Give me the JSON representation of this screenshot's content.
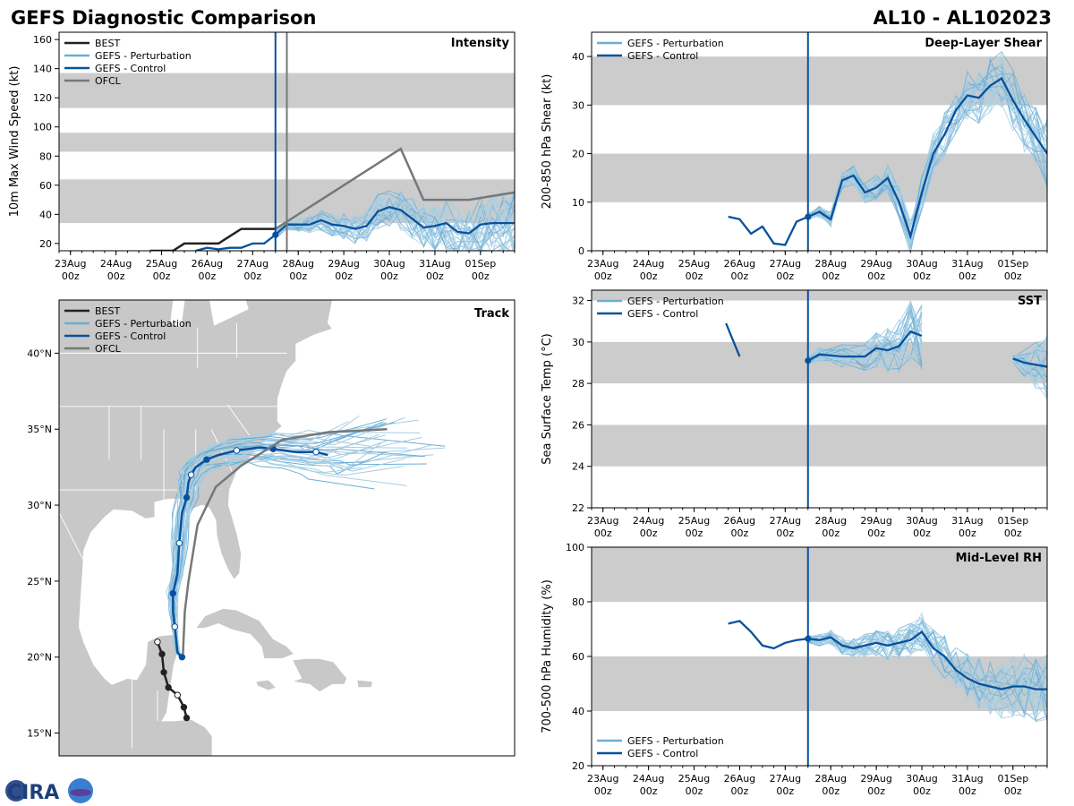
{
  "header": {
    "title": "GEFS Diagnostic Comparison",
    "storm": "AL10 - AL102023"
  },
  "logo": {
    "text": "CIRA"
  },
  "colors": {
    "best": "#222222",
    "pert": "#6baed6",
    "ctrl": "#08519c",
    "ofcl": "#777777",
    "band": "#cccccc",
    "land": "#c8c8c8"
  },
  "time_ticks": [
    "23Aug",
    "24Aug",
    "25Aug",
    "26Aug",
    "27Aug",
    "28Aug",
    "29Aug",
    "30Aug",
    "31Aug",
    "01Sep"
  ],
  "time_tick_sub": "00z",
  "init_time": 4.5,
  "chart_data": [
    {
      "id": "intensity",
      "type": "line",
      "title": "Intensity",
      "ylabel": "10m Max Wind Speed (kt)",
      "xlim": [
        -0.25,
        9.75
      ],
      "ylim": [
        15,
        165
      ],
      "yticks": [
        20,
        40,
        60,
        80,
        100,
        120,
        140,
        160
      ],
      "bands": [
        [
          34,
          64
        ],
        [
          83,
          96
        ],
        [
          113,
          137
        ]
      ],
      "legend": [
        "BEST",
        "GEFS - Perturbation",
        "GEFS - Control",
        "OFCL"
      ],
      "ofcl_vline": 4.75,
      "series": [
        {
          "name": "BEST",
          "x": [
            1.75,
            2.25,
            2.5,
            2.75,
            3.0,
            3.25,
            3.5,
            3.75,
            4.0,
            4.25,
            4.5
          ],
          "y": [
            15,
            15,
            20,
            20,
            20,
            20,
            25,
            30,
            30,
            30,
            30
          ]
        },
        {
          "name": "GEFS - Control",
          "x": [
            2.75,
            3.0,
            3.25,
            3.5,
            3.75,
            4.0,
            4.25,
            4.5,
            4.75,
            5.0,
            5.25,
            5.5,
            5.75,
            6.0,
            6.25,
            6.5,
            6.75,
            7.0,
            7.25,
            7.5,
            7.75,
            8.0,
            8.25,
            8.5,
            8.75,
            9.0,
            9.25,
            9.5,
            9.75
          ],
          "y": [
            15,
            17,
            16,
            17,
            17,
            20,
            20,
            26,
            33,
            33,
            33,
            36,
            33,
            32,
            30,
            32,
            42,
            45,
            43,
            37,
            31,
            32,
            34,
            28,
            27,
            33,
            34,
            34,
            34
          ]
        },
        {
          "name": "OFCL",
          "x": [
            4.5,
            4.75,
            5.25,
            6.25,
            7.25,
            7.75,
            8.75,
            9.75
          ],
          "y": [
            30,
            35,
            45,
            65,
            85,
            50,
            50,
            55
          ]
        }
      ]
    },
    {
      "id": "shear",
      "type": "line",
      "title": "Deep-Layer Shear",
      "ylabel": "200-850 hPa Shear (kt)",
      "xlim": [
        -0.25,
        9.75
      ],
      "ylim": [
        0,
        45
      ],
      "yticks": [
        0,
        10,
        20,
        30,
        40
      ],
      "bands": [
        [
          10,
          20
        ],
        [
          30,
          40
        ]
      ],
      "legend": [
        "GEFS - Perturbation",
        "GEFS - Control"
      ],
      "series": [
        {
          "name": "GEFS - Control",
          "x": [
            2.75,
            3.0,
            3.25,
            3.5,
            3.75,
            4.0,
            4.25,
            4.5,
            4.75,
            5.0,
            5.25,
            5.5,
            5.75,
            6.0,
            6.25,
            6.5,
            6.75,
            7.0,
            7.25,
            7.5,
            7.75,
            8.0,
            8.25,
            8.5,
            8.75,
            9.0,
            9.25,
            9.5,
            9.75
          ],
          "y": [
            7,
            6.5,
            3.5,
            5,
            1.5,
            1.2,
            6,
            7,
            8,
            6.5,
            14.5,
            15.5,
            12,
            13,
            15,
            10,
            3,
            12,
            20,
            24,
            29,
            32,
            31.5,
            34,
            35.5,
            31,
            27,
            23.5,
            20
          ]
        }
      ]
    },
    {
      "id": "sst",
      "type": "line",
      "title": "SST",
      "ylabel": "Sea Surface Temp (°C)",
      "xlim": [
        -0.25,
        9.75
      ],
      "ylim": [
        22,
        32.5
      ],
      "yticks": [
        22,
        24,
        26,
        28,
        30,
        32
      ],
      "bands": [
        [
          24,
          26
        ],
        [
          28,
          30
        ],
        [
          32,
          33
        ]
      ],
      "legend": [
        "GEFS - Perturbation",
        "GEFS - Control"
      ],
      "series": [
        {
          "name": "GEFS - Control seg1",
          "x": [
            2.7,
            3.0
          ],
          "y": [
            30.9,
            29.3
          ]
        },
        {
          "name": "GEFS - Control seg2",
          "x": [
            4.5,
            4.75,
            5.25,
            5.75,
            6.0,
            6.25,
            6.5,
            6.75,
            7.0
          ],
          "y": [
            29.1,
            29.4,
            29.3,
            29.3,
            29.7,
            29.6,
            29.8,
            30.5,
            30.3
          ]
        },
        {
          "name": "GEFS - Control seg3",
          "x": [
            9.0,
            9.25,
            9.5,
            9.75
          ],
          "y": [
            29.2,
            29.0,
            28.9,
            28.8
          ]
        }
      ]
    },
    {
      "id": "rh",
      "type": "line",
      "title": "Mid-Level RH",
      "ylabel": "700-500 hPa Humidity (%)",
      "xlim": [
        -0.25,
        9.75
      ],
      "ylim": [
        20,
        100
      ],
      "yticks": [
        20,
        40,
        60,
        80,
        100
      ],
      "bands": [
        [
          40,
          60
        ],
        [
          80,
          100
        ]
      ],
      "legend": [
        "GEFS - Perturbation",
        "GEFS - Control"
      ],
      "series": [
        {
          "name": "GEFS - Control",
          "x": [
            2.75,
            3.0,
            3.25,
            3.5,
            3.75,
            4.0,
            4.25,
            4.5,
            4.75,
            5.0,
            5.25,
            5.5,
            5.75,
            6.0,
            6.25,
            6.5,
            6.75,
            7.0,
            7.25,
            7.5,
            7.75,
            8.0,
            8.25,
            8.5,
            8.75,
            9.0,
            9.25,
            9.5,
            9.75
          ],
          "y": [
            72,
            73,
            69,
            64,
            63,
            65,
            66,
            66.5,
            66,
            67,
            64,
            63,
            64,
            65,
            64,
            65,
            66,
            69,
            63,
            60,
            55,
            52,
            50,
            49,
            48,
            49,
            49,
            48,
            48
          ]
        }
      ]
    },
    {
      "id": "track",
      "type": "scatter",
      "title": "Track",
      "xlim": [
        -100,
        -50
      ],
      "ylim": [
        13.5,
        43.5
      ],
      "yticks": [
        15,
        20,
        25,
        30,
        35,
        40
      ],
      "ytick_labels": [
        "15°N",
        "20°N",
        "25°N",
        "30°N",
        "35°N",
        "40°N"
      ],
      "legend": [
        "BEST",
        "GEFS - Perturbation",
        "GEFS - Control",
        "OFCL"
      ],
      "series": [
        {
          "name": "BEST",
          "lon": [
            -86.0,
            -86.3,
            -87.0,
            -88.0,
            -88.5,
            -88.7,
            -89.2
          ],
          "lat": [
            16.0,
            16.7,
            17.5,
            18.0,
            19.0,
            20.2,
            21.0
          ]
        },
        {
          "name": "GEFS - Control",
          "lon": [
            -86.5,
            -87.0,
            -87.3,
            -87.5,
            -87.5,
            -87.0,
            -86.8,
            -86.5,
            -86.0,
            -85.8,
            -85.5,
            -85.0,
            -83.8,
            -82.5,
            -80.5,
            -78.0,
            -76.5,
            -74.0,
            -71.8,
            -70.5
          ],
          "lat": [
            20.0,
            20.3,
            22.0,
            23.0,
            24.2,
            25.5,
            27.5,
            29.5,
            30.5,
            31.5,
            32.0,
            32.5,
            33.0,
            33.3,
            33.6,
            33.8,
            33.7,
            33.5,
            33.5,
            33.3
          ]
        },
        {
          "name": "OFCL",
          "lon": [
            -86.4,
            -86.2,
            -85.8,
            -84.8,
            -82.8,
            -80.0,
            -75.5,
            -70.5,
            -64.0
          ],
          "lat": [
            20.2,
            23.0,
            25.0,
            28.7,
            31.2,
            32.6,
            34.3,
            34.8,
            35.0
          ]
        }
      ]
    }
  ]
}
